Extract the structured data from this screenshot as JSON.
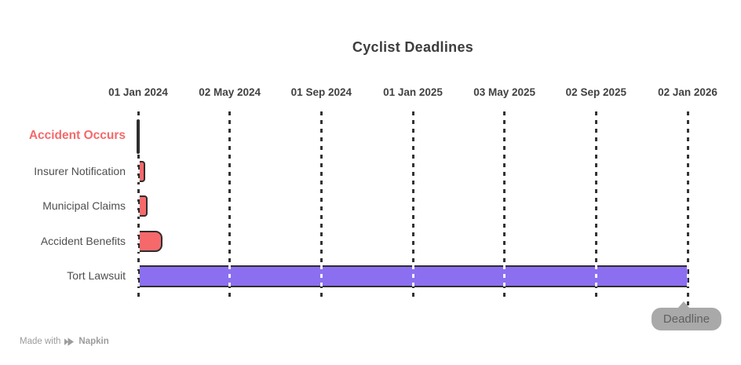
{
  "chart_data": {
    "type": "bar",
    "variant": "gantt-timeline",
    "title": "Cyclist Deadlines",
    "x_ticks": [
      "01 Jan 2024",
      "02 May 2024",
      "01 Sep 2024",
      "01 Jan 2025",
      "03 May 2025",
      "02 Sep 2025",
      "02 Jan 2026"
    ],
    "axis_range_days": [
      0,
      731
    ],
    "grid": "dashed-vertical",
    "tasks": [
      {
        "label": "Accident Occurs",
        "start_day": 0,
        "duration_days": 0,
        "milestone": true,
        "label_color": "#f4696b",
        "label_bold": true
      },
      {
        "label": "Insurer Notification",
        "start_day": 0,
        "duration_days": 7,
        "color": "#f5696b"
      },
      {
        "label": "Municipal Claims",
        "start_day": 0,
        "duration_days": 10,
        "color": "#f5696b"
      },
      {
        "label": "Accident Benefits",
        "start_day": 0,
        "duration_days": 30,
        "color": "#f5696b"
      },
      {
        "label": "Tort Lawsuit",
        "start_day": 0,
        "duration_days": 731,
        "color": "#8b6ff0"
      }
    ]
  },
  "colors": {
    "bar_red": "#f5696b",
    "bar_purple": "#8b6ff0",
    "bar_outline": "#2e2e2e",
    "grid_dark": "#333333",
    "tooltip_bg": "#a9a9a9",
    "tooltip_text": "#606060",
    "title_text": "#3d3d3d",
    "axis_label_text": "#414141",
    "task_label_text": "#4f4f4f",
    "watermark_text": "#9c9c9c"
  },
  "tooltip": {
    "label": "Deadline"
  },
  "watermark": {
    "prefix": "Made with",
    "brand": "Napkin"
  }
}
